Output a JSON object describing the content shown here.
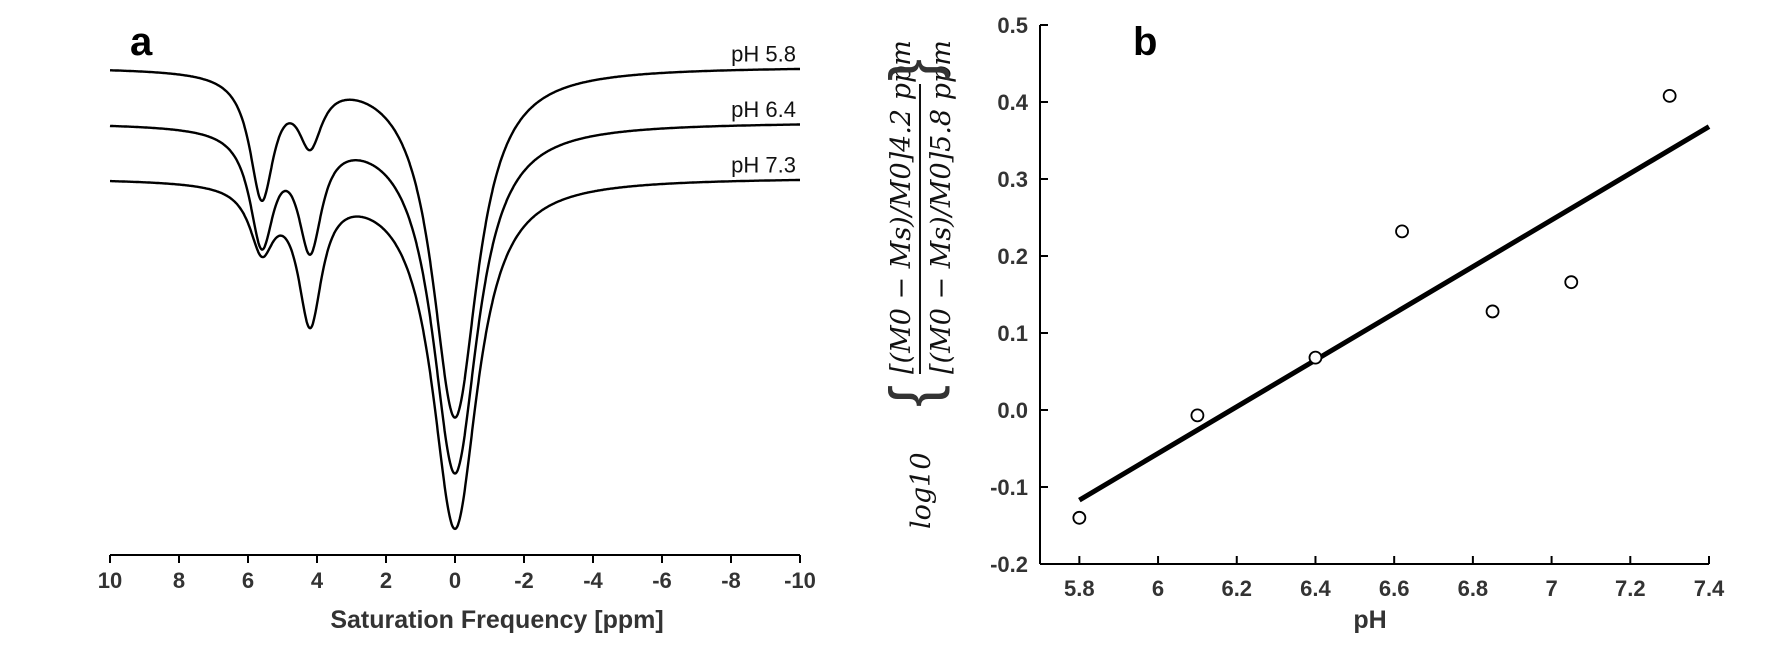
{
  "chart_data": [
    {
      "panel": "a",
      "type": "line",
      "title": "",
      "xlabel": "Saturation Frequency [ppm]",
      "ylabel": "",
      "xlim": [
        10,
        -10
      ],
      "ylim": [
        0,
        1
      ],
      "x_ticks": [
        "10",
        "8",
        "6",
        "4",
        "2",
        "0",
        "-2",
        "-4",
        "-6",
        "-8",
        "-10"
      ],
      "y_axis_visible": false,
      "series": [
        {
          "name": "pH 5.8",
          "baseline": 0.88,
          "water_amp": 0.63,
          "peak_amps": [
            0.22,
            0.11
          ]
        },
        {
          "name": "pH 6.4",
          "baseline": 0.78,
          "water_amp": 0.63,
          "peak_amps": [
            0.2,
            0.2
          ]
        },
        {
          "name": "pH 7.3",
          "baseline": 0.68,
          "water_amp": 0.63,
          "peak_amps": [
            0.11,
            0.24
          ]
        }
      ]
    },
    {
      "panel": "b",
      "type": "scatter",
      "title": "",
      "xlabel": "pH",
      "ylabel_text": {
        "func": "log10",
        "numerator": "[(M0 − Ms)/M0]4.2 ppm",
        "denominator": "[(M0 − Ms)/M0]5.8 ppm"
      },
      "xlim": [
        5.7,
        7.4
      ],
      "ylim": [
        -0.2,
        0.5
      ],
      "x_ticks": [
        "5.8",
        "6",
        "6.2",
        "6.4",
        "6.6",
        "6.8",
        "7",
        "7.2",
        "7.4"
      ],
      "y_ticks": [
        "-0.2",
        "-0.1",
        "0.0",
        "0.1",
        "0.2",
        "0.3",
        "0.4",
        "0.5"
      ],
      "points": [
        {
          "x": 5.8,
          "y": -0.14
        },
        {
          "x": 6.1,
          "y": -0.007
        },
        {
          "x": 6.4,
          "y": 0.068
        },
        {
          "x": 6.62,
          "y": 0.232
        },
        {
          "x": 6.85,
          "y": 0.128
        },
        {
          "x": 7.05,
          "y": 0.166
        },
        {
          "x": 7.3,
          "y": 0.408
        }
      ],
      "fit_line": {
        "x": [
          5.8,
          7.4
        ],
        "y": [
          -0.117,
          0.368
        ]
      }
    }
  ],
  "panels": {
    "a": {
      "label": "a"
    },
    "b": {
      "label": "b"
    }
  }
}
